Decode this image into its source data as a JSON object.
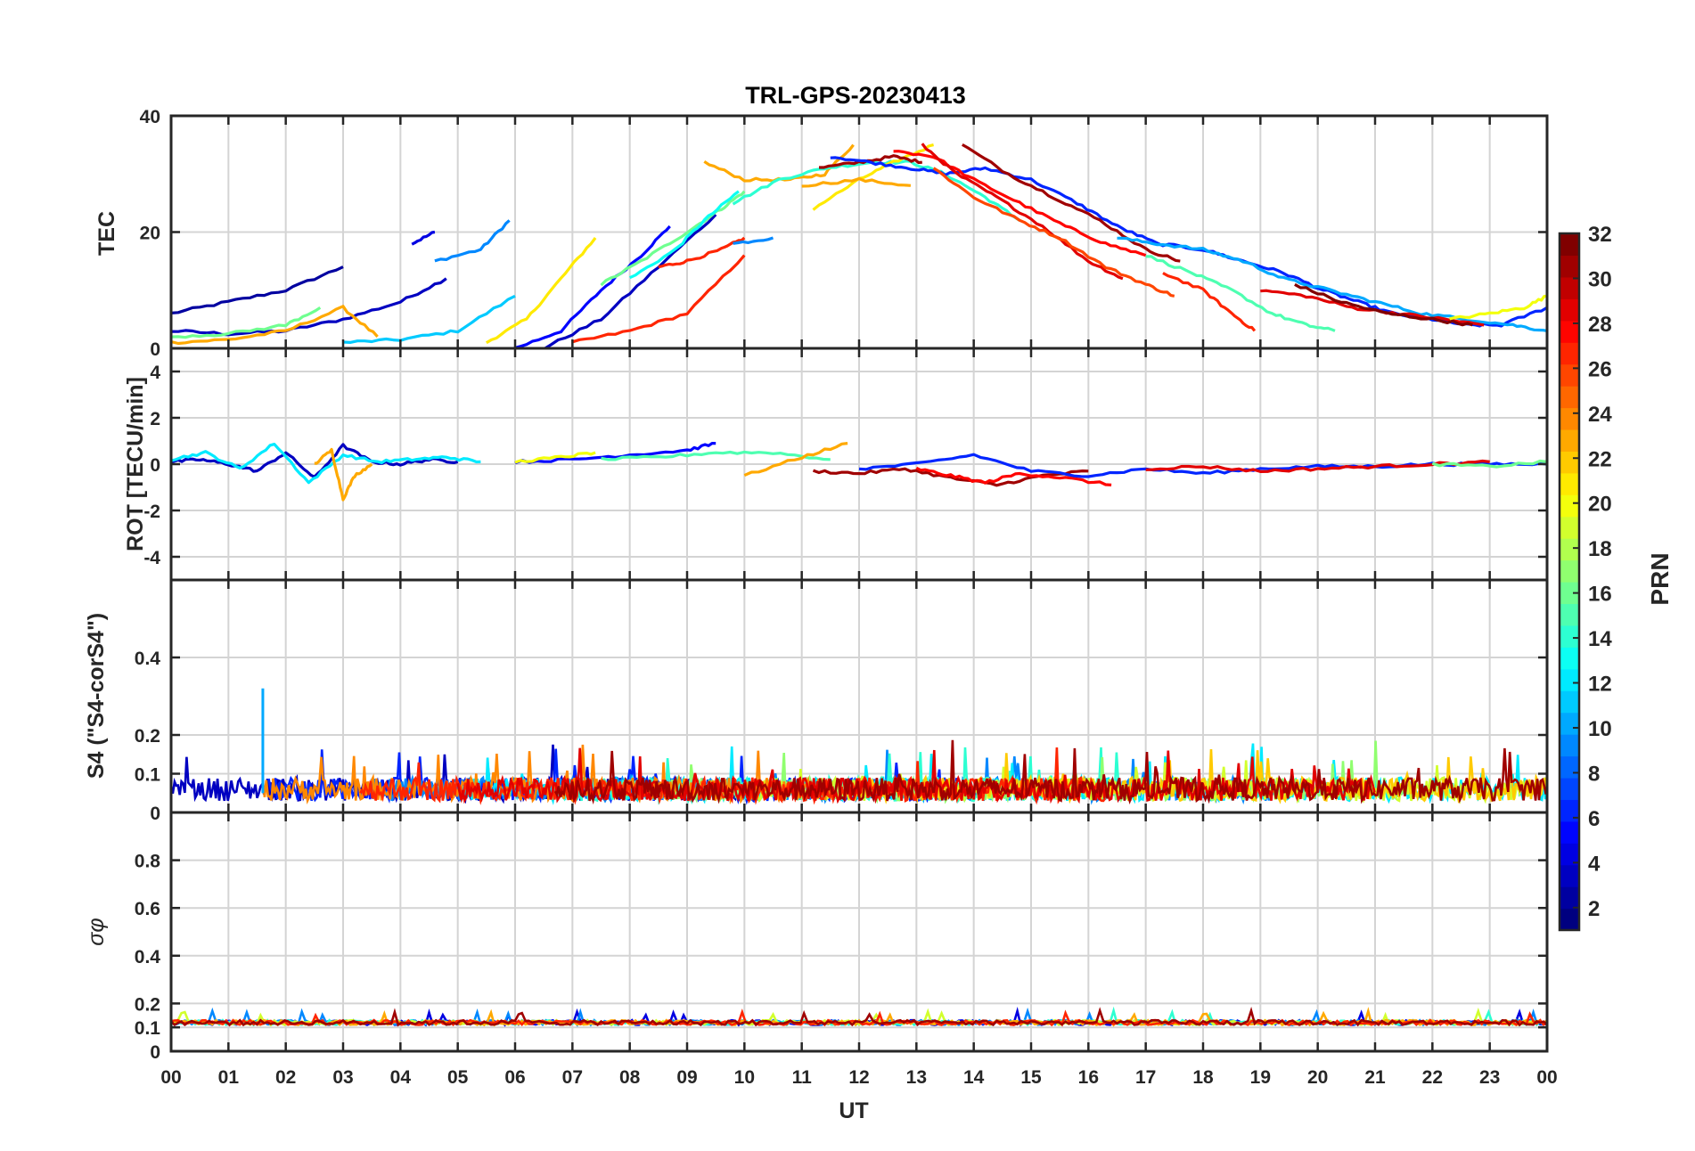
{
  "chart_data": {
    "title": "TRL-GPS-20230413",
    "type": "line",
    "xlabel": "UT",
    "xlim": [
      0,
      24
    ],
    "x_tick_labels": [
      "00",
      "01",
      "02",
      "03",
      "04",
      "05",
      "06",
      "07",
      "08",
      "09",
      "10",
      "11",
      "12",
      "13",
      "14",
      "15",
      "16",
      "17",
      "18",
      "19",
      "20",
      "21",
      "22",
      "23",
      "00"
    ],
    "colorbar": {
      "label": "PRN",
      "range": [
        1,
        32
      ],
      "tick_labels": [
        "2",
        "4",
        "6",
        "8",
        "10",
        "12",
        "14",
        "16",
        "18",
        "20",
        "22",
        "24",
        "26",
        "28",
        "30",
        "32"
      ],
      "colormap": "jet"
    },
    "panels": [
      {
        "name": "tec",
        "ylabel": "TEC",
        "ylim": [
          0,
          40
        ],
        "y_ticks": [
          0,
          20,
          40
        ],
        "series": [
          {
            "prn": 2,
            "x": [
              0.0,
              1.0,
              2.0,
              3.0
            ],
            "y": [
              6,
              8,
              10,
              14
            ]
          },
          {
            "prn": 3,
            "x": [
              0.0,
              1.0,
              2.0,
              3.0,
              4.0,
              4.8
            ],
            "y": [
              3,
              2.5,
              3,
              5,
              8,
              12
            ]
          },
          {
            "prn": 4,
            "x": [
              4.2,
              4.6
            ],
            "y": [
              18,
              20
            ]
          },
          {
            "prn": 9,
            "x": [
              4.6,
              5.4,
              5.9
            ],
            "y": [
              15,
              17,
              22
            ]
          },
          {
            "prn": 11,
            "x": [
              3.0,
              4.0,
              5.0,
              6.0
            ],
            "y": [
              1,
              1.5,
              3,
              9
            ]
          },
          {
            "prn": 21,
            "x": [
              5.5,
              6.2,
              6.8,
              7.4
            ],
            "y": [
              1,
              5,
              12,
              19
            ]
          },
          {
            "prn": 5,
            "x": [
              6.0,
              6.8,
              7.5,
              8.2,
              8.7
            ],
            "y": [
              0,
              3,
              10,
              16,
              21
            ]
          },
          {
            "prn": 3,
            "x": [
              6.5,
              7.5,
              8.5,
              9.5
            ],
            "y": [
              0,
              5,
              14,
              23
            ]
          },
          {
            "prn": 23,
            "x": [
              0.0,
              1.0,
              2.0,
              3.0,
              3.6
            ],
            "y": [
              1,
              1.5,
              3,
              7,
              2
            ]
          },
          {
            "prn": 27,
            "x": [
              7.0,
              8.0,
              9.0,
              10.0
            ],
            "y": [
              1,
              3,
              6,
              16
            ]
          },
          {
            "prn": 16,
            "x": [
              7.5,
              8.2,
              9.0,
              9.6,
              10.0
            ],
            "y": [
              11,
              15,
              20,
              24,
              27
            ]
          },
          {
            "prn": 13,
            "x": [
              8.0,
              8.8,
              9.3,
              9.9
            ],
            "y": [
              12,
              17,
              22,
              27
            ]
          },
          {
            "prn": 27,
            "x": [
              8.5,
              9.0,
              9.6,
              10.0
            ],
            "y": [
              14,
              15,
              17,
              19
            ]
          },
          {
            "prn": 23,
            "x": [
              9.3,
              10.0,
              10.8,
              11.4,
              11.9
            ],
            "y": [
              32,
              29,
              29,
              30,
              35
            ]
          },
          {
            "prn": 9,
            "x": [
              9.8,
              10.5
            ],
            "y": [
              18,
              19
            ]
          },
          {
            "prn": 14,
            "x": [
              9.8,
              10.6,
              11.4,
              12.2,
              12.9,
              13.5,
              14.2,
              14.8
            ],
            "y": [
              25,
              29,
              31,
              32,
              32,
              30,
              26,
              22
            ]
          },
          {
            "prn": 21,
            "x": [
              11.2,
              12.0,
              12.6,
              13.3
            ],
            "y": [
              24,
              29,
              32,
              35
            ]
          },
          {
            "prn": 23,
            "x": [
              11.0,
              12.0,
              12.9
            ],
            "y": [
              28,
              29,
              28
            ]
          },
          {
            "prn": 31,
            "x": [
              11.3,
              12.0,
              12.6,
              13.1
            ],
            "y": [
              31,
              32,
              33,
              32
            ]
          },
          {
            "prn": 6,
            "x": [
              11.5,
              12.2,
              12.9,
              13.5,
              14.2,
              15.0,
              15.8,
              16.5,
              17.2,
              18.0,
              18.7,
              19.4,
              20.1,
              20.7,
              21.3,
              22.0,
              22.6,
              23.2,
              24.0
            ],
            "y": [
              33,
              32,
              31,
              30,
              31,
              29,
              25,
              21,
              18,
              17,
              15,
              13,
              10,
              8,
              6,
              5,
              4,
              4,
              7
            ]
          },
          {
            "prn": 28,
            "x": [
              12.6,
              13.3,
              14.0,
              14.8,
              15.6,
              16.3,
              17.0
            ],
            "y": [
              34,
              33,
              29,
              25,
              21,
              18,
              16
            ]
          },
          {
            "prn": 29,
            "x": [
              13.1,
              13.7,
              14.4,
              15.2,
              16.0,
              16.6
            ],
            "y": [
              35,
              30,
              26,
              21,
              15,
              12
            ]
          },
          {
            "prn": 26,
            "x": [
              13.3,
              14.0,
              14.8,
              15.5,
              16.3,
              17.0,
              17.5
            ],
            "y": [
              31,
              26,
              22,
              19,
              14,
              11,
              9
            ]
          },
          {
            "prn": 31,
            "x": [
              13.8,
              14.6,
              15.4,
              16.2,
              17.0,
              17.6
            ],
            "y": [
              35,
              30,
              26,
              22,
              17,
              15
            ]
          },
          {
            "prn": 10,
            "x": [
              16.5,
              17.2,
              18.0,
              18.7,
              19.4,
              20.2,
              21.0,
              21.8,
              22.6,
              23.4,
              24.0
            ],
            "y": [
              19,
              18,
              17,
              15,
              12,
              10,
              8,
              6,
              5,
              4,
              3
            ]
          },
          {
            "prn": 15,
            "x": [
              17.0,
              17.8,
              18.5,
              19.2,
              19.8,
              20.3
            ],
            "y": [
              16,
              13,
              10,
              6,
              4,
              3
            ]
          },
          {
            "prn": 27,
            "x": [
              17.3,
              18.0,
              18.5,
              18.9
            ],
            "y": [
              13,
              10,
              6,
              3
            ]
          },
          {
            "prn": 29,
            "x": [
              19.0,
              19.8,
              20.6,
              21.4,
              22.2,
              22.9
            ],
            "y": [
              10,
              9,
              7,
              6,
              5,
              4
            ]
          },
          {
            "prn": 32,
            "x": [
              19.6,
              20.4,
              21.2,
              22.0,
              22.7
            ],
            "y": [
              11,
              8,
              6,
              5,
              4
            ]
          },
          {
            "prn": 20,
            "x": [
              22.3,
              23.0,
              23.6,
              24.0
            ],
            "y": [
              5,
              6,
              7,
              9
            ]
          },
          {
            "prn": 16,
            "x": [
              0.0,
              1.0,
              2.0,
              2.6
            ],
            "y": [
              2,
              2.5,
              4,
              7
            ]
          }
        ]
      },
      {
        "name": "rot",
        "ylabel": "ROT [TECU/min]",
        "ylim": [
          -5,
          5
        ],
        "y_ticks": [
          -4,
          -2,
          0,
          2,
          4
        ],
        "series": [
          {
            "prn": 3,
            "x": [
              0.0,
              0.5,
              1.0,
              1.5,
              2.0,
              2.5,
              3.0,
              3.5,
              4.0,
              4.5,
              5.0
            ],
            "y": [
              0.1,
              0.2,
              0.0,
              -0.3,
              0.5,
              -0.6,
              0.8,
              0.1,
              0.0,
              0.2,
              0.1
            ]
          },
          {
            "prn": 12,
            "x": [
              0.0,
              0.6,
              1.2,
              1.8,
              2.4,
              3.0,
              3.6,
              4.2,
              4.8,
              5.4
            ],
            "y": [
              0.2,
              0.5,
              -0.2,
              0.9,
              -0.8,
              0.4,
              0.1,
              0.2,
              0.3,
              0.1
            ]
          },
          {
            "prn": 23,
            "x": [
              2.5,
              2.8,
              3.0,
              3.2,
              3.5
            ],
            "y": [
              0.0,
              0.6,
              -1.5,
              -0.5,
              0.0
            ]
          },
          {
            "prn": 5,
            "x": [
              6.0,
              7.0,
              8.0,
              9.0,
              9.5
            ],
            "y": [
              0.1,
              0.2,
              0.4,
              0.6,
              0.9
            ]
          },
          {
            "prn": 20,
            "x": [
              6.0,
              6.8,
              7.4
            ],
            "y": [
              0.1,
              0.3,
              0.5
            ]
          },
          {
            "prn": 15,
            "x": [
              7.5,
              8.5,
              9.5,
              10.5,
              11.5
            ],
            "y": [
              0.2,
              0.3,
              0.5,
              0.5,
              0.2
            ]
          },
          {
            "prn": 23,
            "x": [
              10.0,
              11.0,
              11.8
            ],
            "y": [
              -0.5,
              0.3,
              0.9
            ]
          },
          {
            "prn": 31,
            "x": [
              11.2,
              12.0,
              12.8,
              13.6,
              14.4,
              15.2,
              16.0
            ],
            "y": [
              -0.3,
              -0.4,
              -0.2,
              -0.6,
              -0.9,
              -0.5,
              -0.3
            ]
          },
          {
            "prn": 28,
            "x": [
              13.0,
              13.6,
              14.2,
              14.8,
              15.6,
              16.4
            ],
            "y": [
              -0.2,
              -0.5,
              -0.8,
              -0.4,
              -0.6,
              -0.9
            ]
          },
          {
            "prn": 6,
            "x": [
              12.0,
              13.0,
              14.0,
              15.0,
              16.0,
              17.0,
              18.0,
              19.0,
              20.0,
              21.0,
              22.0,
              23.0,
              24.0
            ],
            "y": [
              -0.2,
              0.0,
              0.4,
              -0.3,
              -0.5,
              -0.2,
              -0.4,
              -0.2,
              -0.1,
              -0.1,
              0.0,
              0.0,
              0.0
            ]
          },
          {
            "prn": 29,
            "x": [
              17.0,
              18.0,
              19.0,
              20.0,
              21.0,
              22.0,
              23.0
            ],
            "y": [
              -0.2,
              -0.1,
              -0.3,
              -0.2,
              -0.1,
              0.0,
              0.1
            ]
          },
          {
            "prn": 16,
            "x": [
              22.0,
              23.0,
              24.0
            ],
            "y": [
              0.0,
              -0.1,
              0.1
            ]
          }
        ]
      },
      {
        "name": "s4",
        "ylabel": "S4 (\"S4-corS4\")",
        "ylim": [
          0,
          0.6
        ],
        "y_ticks": [
          0,
          0.1,
          0.2,
          0.4
        ],
        "peak_value": 0.32,
        "peak_time": 1.6,
        "noise_floor": 0.05,
        "noise_peak": 0.15
      },
      {
        "name": "sigma_phi",
        "ylabel": "σφ",
        "ylim": [
          0,
          1
        ],
        "y_ticks": [
          0,
          0.1,
          0.2,
          0.4,
          0.6,
          0.8
        ],
        "baseline": 0.12
      }
    ]
  }
}
